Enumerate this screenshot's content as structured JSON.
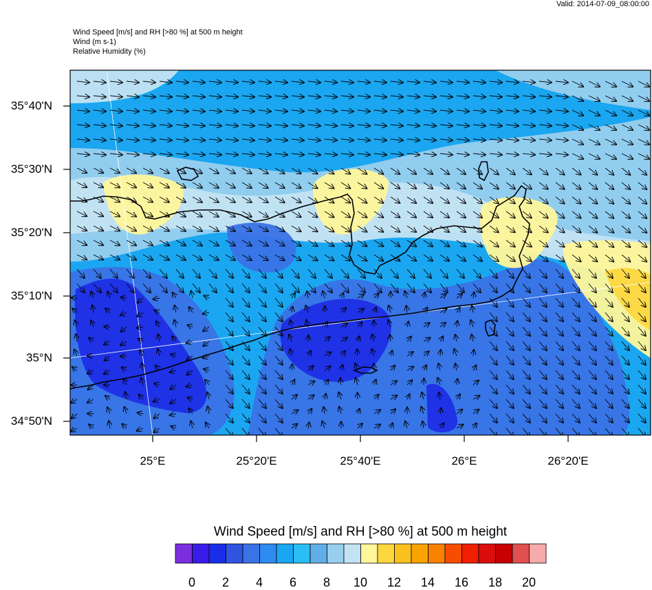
{
  "header": {
    "valid_time": "Valid: 2014-07-09_08:00:00",
    "title_line1": "Wind Speed [m/s] and RH [>80 %] at 500 m height",
    "title_line2": "Wind   (m s-1)",
    "title_line3": "Relative Humidity   (%)"
  },
  "axes": {
    "lat_labels": [
      "35°40'N",
      "35°30'N",
      "35°20'N",
      "35°10'N",
      "35°N",
      "34°50'N"
    ],
    "lon_labels": [
      "25°E",
      "25°20'E",
      "25°40'E",
      "26°E",
      "26°20'E"
    ]
  },
  "colorbar": {
    "title": "Wind Speed [m/s] and RH [>80 %] at 500 m height",
    "labels": [
      "0",
      "2",
      "4",
      "6",
      "8",
      "10",
      "12",
      "14",
      "16",
      "18",
      "20"
    ],
    "colors": [
      "#7b2ee0",
      "#3a1be8",
      "#1a2ee8",
      "#2f55e0",
      "#3a73e6",
      "#2f8bf0",
      "#1aa6f0",
      "#2bbdf5",
      "#62aee6",
      "#98cfee",
      "#c4e3f2",
      "#fff59a",
      "#fcd740",
      "#fac020",
      "#f9a400",
      "#f98000",
      "#f84d00",
      "#f01f00",
      "#dc0d0d",
      "#c80000",
      "#e05050",
      "#f6aaaa"
    ]
  },
  "map_colors": {
    "calm": "#1e2ee6",
    "light": "#3a72e6",
    "moderate": "#1aa6f0",
    "fresh": "#98cfee",
    "strong": "#c4e3f2",
    "humid": "#fff59a",
    "humid_strong": "#fcd740",
    "coast": "#000000",
    "grid": "#ffffff"
  }
}
